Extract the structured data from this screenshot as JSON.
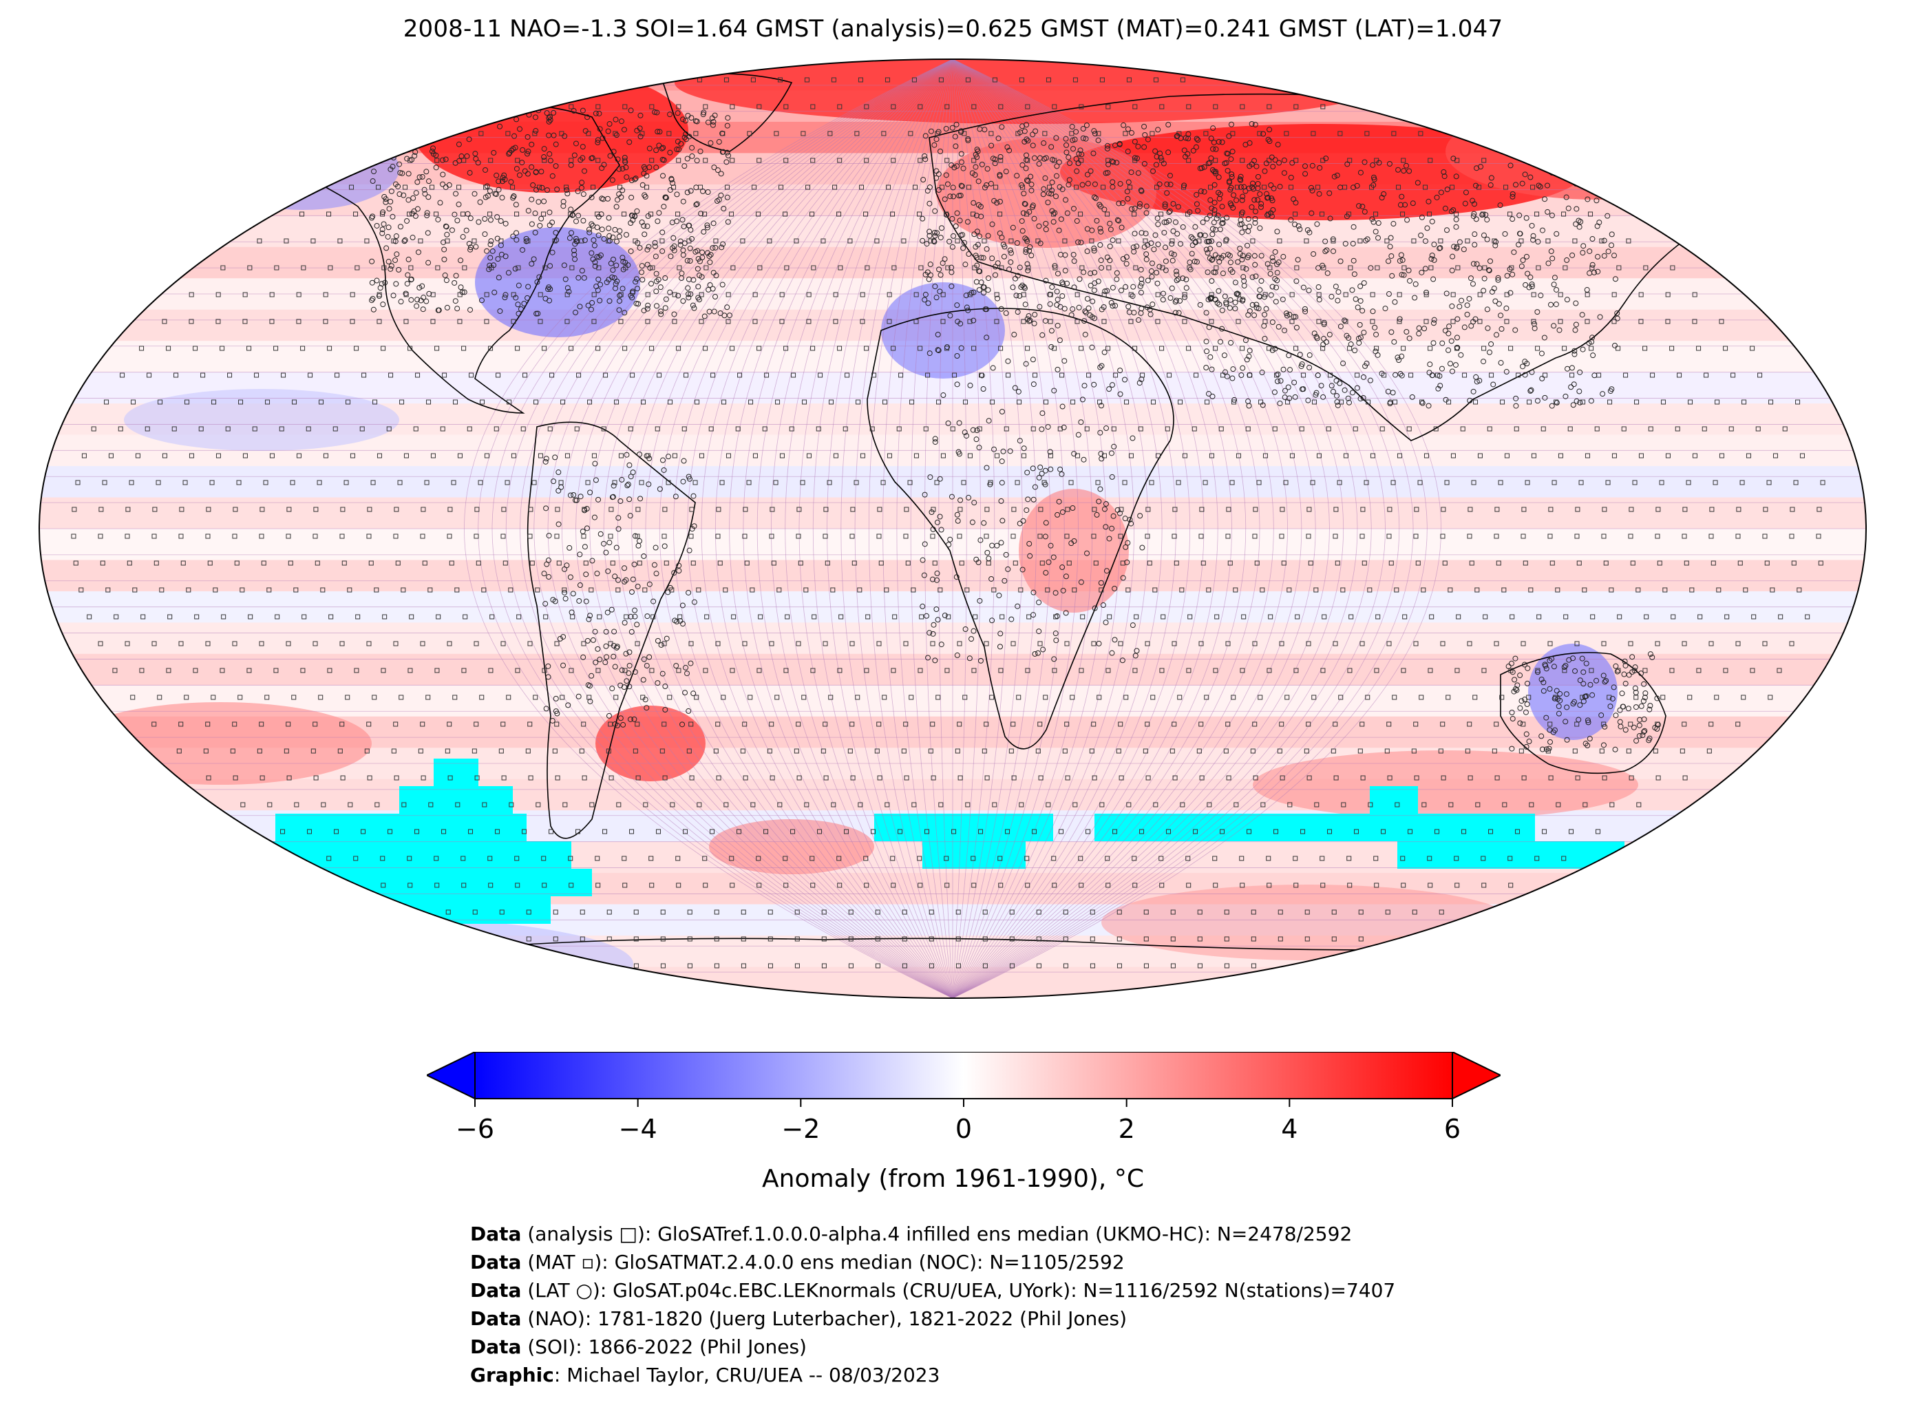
{
  "title": "2008-11 NAO=-1.3 SOI=1.64 GMST (analysis)=0.625 GMST (MAT)=0.241 GMST (LAT)=1.047",
  "colorbar": {
    "label": "Anomaly (from 1961-1990), °C",
    "min": -6,
    "max": 6,
    "ticks": [
      "−6",
      "−4",
      "−2",
      "0",
      "2",
      "4",
      "6"
    ],
    "tick_values": [
      -6,
      -4,
      -2,
      0,
      2,
      4,
      6
    ],
    "colors": {
      "low": "#0000ff",
      "mid": "#ffffff",
      "high": "#ff0000"
    }
  },
  "map": {
    "projection": "Robinson",
    "missing_color": "#00ffff",
    "grid_line_color": "#b37ab8",
    "coastline_color": "#000000"
  },
  "credits": [
    {
      "label": "Data",
      "text": " (analysis □): GloSATref.1.0.0.0-alpha.4 infilled ens median (UKMO-HC): N=2478/2592"
    },
    {
      "label": "Data",
      "text": " (MAT ▫): GloSATMAT.2.4.0.0 ens median (NOC): N=1105/2592"
    },
    {
      "label": "Data",
      "text": " (LAT ○): GloSAT.p04c.EBC.LEKnormals (CRU/UEA, UYork): N=1116/2592 N(stations)=7407"
    },
    {
      "label": "Data",
      "text": " (NAO): 1781-1820 (Juerg Luterbacher), 1821-2022 (Phil Jones)"
    },
    {
      "label": "Data",
      "text": " (SOI): 1866-2022 (Phil Jones)"
    },
    {
      "label": "Graphic",
      "text": ": Michael Taylor, CRU/UEA -- 08/03/2023"
    }
  ]
}
